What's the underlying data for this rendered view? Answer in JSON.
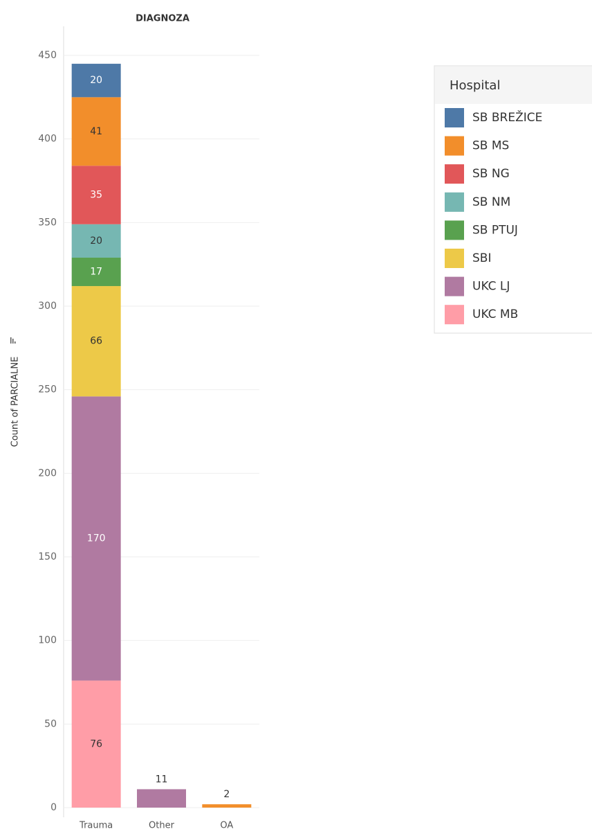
{
  "chart_data": {
    "type": "stacked_bar",
    "title": "DIAGNOZA",
    "y_label": "Count of PARCIALNE",
    "categories": [
      "Trauma",
      "Other",
      "OA"
    ],
    "legend_title": "Hospital",
    "series": [
      {
        "name": "SB BREŽICE",
        "color": "#4e79a7",
        "values": [
          20,
          null,
          null
        ]
      },
      {
        "name": "SB MS",
        "color": "#f28e2b",
        "values": [
          41,
          null,
          2
        ]
      },
      {
        "name": "SB NG",
        "color": "#e15759",
        "values": [
          35,
          null,
          null
        ]
      },
      {
        "name": "SB NM",
        "color": "#76b7b2",
        "values": [
          20,
          null,
          null
        ]
      },
      {
        "name": "SB PTUJ",
        "color": "#59a14f",
        "values": [
          17,
          null,
          null
        ]
      },
      {
        "name": "SBI",
        "color": "#edc948",
        "values": [
          66,
          null,
          null
        ]
      },
      {
        "name": "UKC LJ",
        "color": "#b07aa1",
        "values": [
          170,
          11,
          null
        ]
      },
      {
        "name": "UKC MB",
        "color": "#ff9da7",
        "values": [
          76,
          null,
          null
        ]
      }
    ],
    "ylim": [
      0,
      450
    ],
    "yticks": [
      0,
      50,
      100,
      150,
      200,
      250,
      300,
      350,
      400,
      450
    ],
    "grid": true,
    "legend": "right"
  }
}
